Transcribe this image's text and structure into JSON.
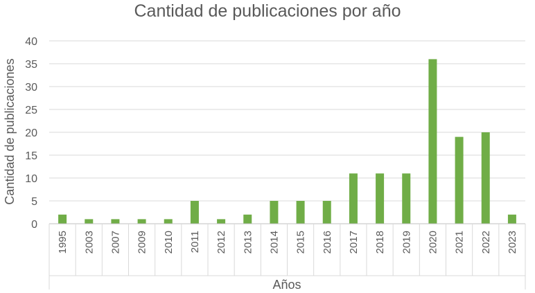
{
  "chart_data": {
    "type": "bar",
    "title": "Cantidad de publicaciones por año",
    "xlabel": "Años",
    "ylabel": "Cantidad de publicaciones",
    "categories": [
      "1995",
      "2003",
      "2007",
      "2009",
      "2010",
      "2011",
      "2012",
      "2013",
      "2014",
      "2015",
      "2016",
      "2017",
      "2018",
      "2019",
      "2020",
      "2021",
      "2022",
      "2023"
    ],
    "values": [
      2,
      1,
      1,
      1,
      1,
      5,
      1,
      2,
      5,
      5,
      5,
      11,
      11,
      11,
      36,
      19,
      20,
      2
    ],
    "ylim": [
      0,
      40
    ],
    "yticks": [
      "0",
      "5",
      "10",
      "15",
      "20",
      "25",
      "30",
      "35",
      "40"
    ],
    "grid": true,
    "legend": "none",
    "bar_color": "#70ad47",
    "grid_color": "#d9d9d9"
  }
}
